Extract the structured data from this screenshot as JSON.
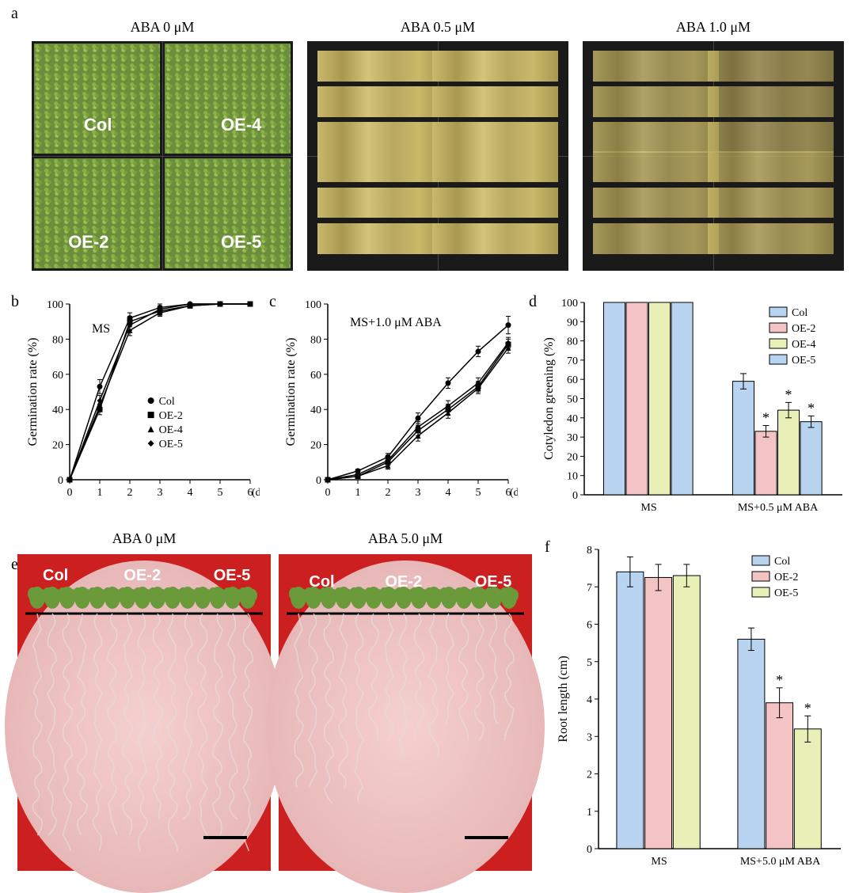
{
  "panel_labels": {
    "a": "a",
    "b": "b",
    "c": "c",
    "d": "d",
    "e": "e",
    "f": "f"
  },
  "panel_a": {
    "treatments": [
      "ABA 0 μM",
      "ABA 0.5 μM",
      "ABA 1.0 μM"
    ],
    "genotypes": [
      "Col",
      "OE-4",
      "OE-2",
      "OE-5"
    ],
    "bg_color": "#1a1a1a",
    "healthy_color": "#7ba03a",
    "stressed_color": "#c9b86a"
  },
  "panel_b": {
    "type": "line",
    "title": "MS",
    "xlabel": "(d)",
    "ylabel": "Germination rate (%)",
    "xlim": [
      0,
      6
    ],
    "ylim": [
      0,
      100
    ],
    "xtick_step": 1,
    "ytick_step": 20,
    "series": [
      {
        "name": "Col",
        "marker": "circle",
        "x": [
          0,
          1,
          2,
          3,
          4,
          5,
          6
        ],
        "y": [
          0,
          53,
          92,
          98,
          100,
          100,
          100
        ],
        "err": [
          0,
          4,
          3,
          2,
          0,
          0,
          0
        ]
      },
      {
        "name": "OE-2",
        "marker": "square",
        "x": [
          0,
          1,
          2,
          3,
          4,
          5,
          6
        ],
        "y": [
          0,
          40,
          90,
          96,
          99,
          100,
          100
        ],
        "err": [
          0,
          3,
          3,
          2,
          1,
          0,
          0
        ]
      },
      {
        "name": "OE-4",
        "marker": "triangle",
        "x": [
          0,
          1,
          2,
          3,
          4,
          5,
          6
        ],
        "y": [
          0,
          42,
          85,
          95,
          99,
          100,
          100
        ],
        "err": [
          0,
          3,
          3,
          2,
          1,
          0,
          0
        ]
      },
      {
        "name": "OE-5",
        "marker": "diamond",
        "x": [
          0,
          1,
          2,
          3,
          4,
          5,
          6
        ],
        "y": [
          0,
          45,
          88,
          97,
          100,
          100,
          100
        ],
        "err": [
          0,
          3,
          3,
          2,
          0,
          0,
          0
        ]
      }
    ],
    "line_color": "#000000",
    "label_fontsize": 16,
    "tick_fontsize": 14
  },
  "panel_c": {
    "type": "line",
    "title": "MS+1.0 μM ABA",
    "xlabel": "(d)",
    "ylabel": "Germination rate (%)",
    "xlim": [
      0,
      6
    ],
    "ylim": [
      0,
      100
    ],
    "xtick_step": 1,
    "ytick_step": 20,
    "series": [
      {
        "name": "Col",
        "marker": "circle",
        "x": [
          0,
          1,
          2,
          3,
          4,
          5,
          6
        ],
        "y": [
          0,
          5,
          13,
          35,
          55,
          73,
          88
        ],
        "err": [
          0,
          1,
          2,
          3,
          3,
          3,
          5
        ]
      },
      {
        "name": "OE-2",
        "marker": "square",
        "x": [
          0,
          1,
          2,
          3,
          4,
          5,
          6
        ],
        "y": [
          0,
          2,
          10,
          28,
          40,
          53,
          77
        ],
        "err": [
          0,
          1,
          2,
          3,
          3,
          3,
          3
        ]
      },
      {
        "name": "OE-4",
        "marker": "triangle",
        "x": [
          0,
          1,
          2,
          3,
          4,
          5,
          6
        ],
        "y": [
          0,
          2,
          8,
          25,
          38,
          52,
          75
        ],
        "err": [
          0,
          1,
          2,
          3,
          3,
          3,
          3
        ]
      },
      {
        "name": "OE-5",
        "marker": "diamond",
        "x": [
          0,
          1,
          2,
          3,
          4,
          5,
          6
        ],
        "y": [
          0,
          3,
          11,
          30,
          42,
          55,
          78
        ],
        "err": [
          0,
          1,
          2,
          3,
          3,
          3,
          3
        ]
      }
    ],
    "line_color": "#000000",
    "label_fontsize": 16,
    "tick_fontsize": 14
  },
  "panel_d": {
    "type": "bar",
    "ylabel": "Cotyledon greening (%)",
    "ylim": [
      0,
      100
    ],
    "ytick_step": 10,
    "groups": [
      "MS",
      "MS+0.5 μM ABA"
    ],
    "series": [
      {
        "name": "Col",
        "color": "#b8d4f0",
        "values": [
          100,
          59
        ],
        "err": [
          0,
          4
        ],
        "sig": [
          "",
          ""
        ]
      },
      {
        "name": "OE-2",
        "color": "#f4c4c4",
        "values": [
          100,
          33
        ],
        "err": [
          0,
          3
        ],
        "sig": [
          "",
          "*"
        ]
      },
      {
        "name": "OE-4",
        "color": "#e8f0b8",
        "values": [
          100,
          44
        ],
        "err": [
          0,
          4
        ],
        "sig": [
          "",
          "*"
        ]
      },
      {
        "name": "OE-5",
        "color": "#b8d4f0",
        "values": [
          100,
          38
        ],
        "err": [
          0,
          3
        ],
        "sig": [
          "",
          "*"
        ]
      }
    ],
    "bar_stroke": "#000000",
    "label_fontsize": 16,
    "tick_fontsize": 14
  },
  "panel_e": {
    "treatments": [
      "ABA 0 μM",
      "ABA 5.0 μM"
    ],
    "genotypes": [
      "Col",
      "OE-2",
      "OE-5"
    ],
    "bg_color": "#cc2020",
    "dish_color": "#f0c8c8",
    "plant_color": "#6a9a3a",
    "root_color": "#e8d8d8"
  },
  "panel_f": {
    "type": "bar",
    "ylabel": "Root length (cm)",
    "ylim": [
      0,
      8
    ],
    "ytick_step": 1,
    "groups": [
      "MS",
      "MS+5.0 μM ABA"
    ],
    "series": [
      {
        "name": "Col",
        "color": "#b8d4f0",
        "values": [
          7.4,
          5.6
        ],
        "err": [
          0.4,
          0.3
        ],
        "sig": [
          "",
          ""
        ]
      },
      {
        "name": "OE-2",
        "color": "#f4c4c4",
        "values": [
          7.25,
          3.9
        ],
        "err": [
          0.35,
          0.4
        ],
        "sig": [
          "",
          "*"
        ]
      },
      {
        "name": "OE-5",
        "color": "#e8f0b8",
        "values": [
          7.3,
          3.2
        ],
        "err": [
          0.3,
          0.35
        ],
        "sig": [
          "",
          "*"
        ]
      }
    ],
    "bar_stroke": "#000000",
    "label_fontsize": 16,
    "tick_fontsize": 14
  }
}
